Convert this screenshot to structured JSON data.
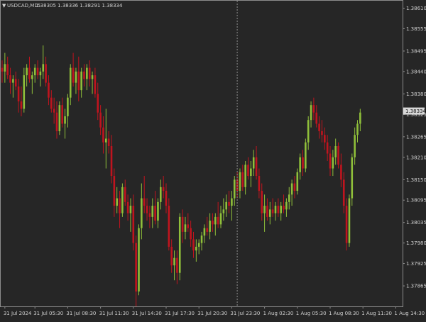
{
  "header": {
    "menu_arrow": "▼",
    "symbol_timeframe": "USDCAD,M15",
    "ohlc": "1.38305 1.38336 1.38291 1.38334"
  },
  "colors": {
    "background": "#262626",
    "border": "#8c8c8c",
    "bull": "#8fbf3a",
    "bear": "#c0141e",
    "text": "#d0d0d0",
    "vline": "#8a8a8a",
    "price_tag_bg": "#d8d8d8",
    "price_tag_text": "#111111"
  },
  "chart_data": {
    "type": "candlestick",
    "symbol": "USDCAD",
    "timeframe": "M15",
    "price_range": [
      1.3781,
      1.3863
    ],
    "y_ticks": [
      "1.38610",
      "1.38555",
      "1.38495",
      "1.38440",
      "1.38380",
      "1.38325",
      "1.38265",
      "1.38210",
      "1.38150",
      "1.38095",
      "1.38035",
      "1.37980",
      "1.37925",
      "1.37865"
    ],
    "x_ticks": [
      {
        "label": "31 Jul 2024",
        "index": 1
      },
      {
        "label": "31 Jul 05:30",
        "index": 12
      },
      {
        "label": "31 Jul 08:30",
        "index": 24
      },
      {
        "label": "31 Jul 11:30",
        "index": 36
      },
      {
        "label": "31 Jul 14:30",
        "index": 48
      },
      {
        "label": "31 Jul 17:30",
        "index": 60
      },
      {
        "label": "31 Jul 20:30",
        "index": 72
      },
      {
        "label": "31 Jul 23:30",
        "index": 84
      },
      {
        "label": "1 Aug 02:30",
        "index": 96
      },
      {
        "label": "1 Aug 05:30",
        "index": 108
      },
      {
        "label": "1 Aug 08:30",
        "index": 120
      },
      {
        "label": "1 Aug 11:30",
        "index": 132
      },
      {
        "label": "1 Aug 14:30",
        "index": 144
      }
    ],
    "current_price": "1.38334",
    "current_price_value": 1.38334,
    "period_separator_index": 86,
    "candles": [
      [
        1.3845,
        1.3847,
        1.3841,
        1.3844
      ],
      [
        1.3844,
        1.3849,
        1.3841,
        1.3846
      ],
      [
        1.3846,
        1.3848,
        1.3842,
        1.3843
      ],
      [
        1.3843,
        1.3845,
        1.3838,
        1.3841
      ],
      [
        1.3841,
        1.3843,
        1.3837,
        1.3842
      ],
      [
        1.3842,
        1.3844,
        1.3839,
        1.384
      ],
      [
        1.384,
        1.3842,
        1.3833,
        1.3836
      ],
      [
        1.3836,
        1.384,
        1.3832,
        1.3834
      ],
      [
        1.3834,
        1.3845,
        1.3833,
        1.3843
      ],
      [
        1.3843,
        1.3846,
        1.384,
        1.3845
      ],
      [
        1.3845,
        1.3848,
        1.3841,
        1.3842
      ],
      [
        1.3842,
        1.3844,
        1.3838,
        1.3843
      ],
      [
        1.3843,
        1.3846,
        1.3841,
        1.3845
      ],
      [
        1.3845,
        1.3847,
        1.3842,
        1.3843
      ],
      [
        1.3843,
        1.3845,
        1.384,
        1.3844
      ],
      [
        1.3844,
        1.3851,
        1.3842,
        1.3846
      ],
      [
        1.3846,
        1.3848,
        1.384,
        1.3841
      ],
      [
        1.3841,
        1.3843,
        1.3835,
        1.3837
      ],
      [
        1.3837,
        1.3839,
        1.3833,
        1.3834
      ],
      [
        1.3834,
        1.3837,
        1.383,
        1.3833
      ],
      [
        1.3833,
        1.3836,
        1.3826,
        1.3828
      ],
      [
        1.3828,
        1.3836,
        1.3827,
        1.3835
      ],
      [
        1.3835,
        1.3837,
        1.3829,
        1.383
      ],
      [
        1.383,
        1.3834,
        1.3826,
        1.3832
      ],
      [
        1.3832,
        1.3838,
        1.3829,
        1.3837
      ],
      [
        1.3837,
        1.3846,
        1.3835,
        1.3845
      ],
      [
        1.3845,
        1.3849,
        1.384,
        1.3841
      ],
      [
        1.3841,
        1.3845,
        1.3838,
        1.3844
      ],
      [
        1.3844,
        1.3848,
        1.3836,
        1.3839
      ],
      [
        1.3839,
        1.3845,
        1.3837,
        1.3844
      ],
      [
        1.3844,
        1.3846,
        1.384,
        1.3842
      ],
      [
        1.3842,
        1.3846,
        1.3839,
        1.3845
      ],
      [
        1.3845,
        1.3847,
        1.384,
        1.3842
      ],
      [
        1.3842,
        1.3844,
        1.3838,
        1.3843
      ],
      [
        1.3843,
        1.3845,
        1.3837,
        1.3838
      ],
      [
        1.3838,
        1.3841,
        1.3831,
        1.3833
      ],
      [
        1.3833,
        1.3835,
        1.3827,
        1.3829
      ],
      [
        1.3829,
        1.3832,
        1.3822,
        1.3825
      ],
      [
        1.3825,
        1.3834,
        1.3818,
        1.3826
      ],
      [
        1.3826,
        1.3828,
        1.3822,
        1.3824
      ],
      [
        1.3824,
        1.3827,
        1.3814,
        1.3816
      ],
      [
        1.3816,
        1.3818,
        1.3805,
        1.3808
      ],
      [
        1.3808,
        1.3813,
        1.3806,
        1.381
      ],
      [
        1.381,
        1.3812,
        1.3802,
        1.3806
      ],
      [
        1.3806,
        1.3814,
        1.3805,
        1.3813
      ],
      [
        1.3813,
        1.3815,
        1.3808,
        1.3809
      ],
      [
        1.3809,
        1.3811,
        1.3804,
        1.3806
      ],
      [
        1.3806,
        1.381,
        1.3801,
        1.3808
      ],
      [
        1.3808,
        1.3811,
        1.3796,
        1.3798
      ],
      [
        1.3798,
        1.38,
        1.3781,
        1.3785
      ],
      [
        1.3785,
        1.3803,
        1.3784,
        1.3802
      ],
      [
        1.3802,
        1.3814,
        1.3799,
        1.381
      ],
      [
        1.381,
        1.3816,
        1.3806,
        1.3808
      ],
      [
        1.3808,
        1.381,
        1.3804,
        1.3806
      ],
      [
        1.3806,
        1.3808,
        1.3802,
        1.3805
      ],
      [
        1.3805,
        1.381,
        1.3802,
        1.3808
      ],
      [
        1.3808,
        1.3812,
        1.3803,
        1.3804
      ],
      [
        1.3804,
        1.381,
        1.3802,
        1.3809
      ],
      [
        1.3809,
        1.3815,
        1.3807,
        1.3813
      ],
      [
        1.3813,
        1.3816,
        1.381,
        1.3812
      ],
      [
        1.3812,
        1.3814,
        1.3806,
        1.3808
      ],
      [
        1.3808,
        1.381,
        1.3796,
        1.3797
      ],
      [
        1.3797,
        1.3799,
        1.379,
        1.3792
      ],
      [
        1.3792,
        1.3796,
        1.3788,
        1.3794
      ],
      [
        1.3794,
        1.3796,
        1.3787,
        1.379
      ],
      [
        1.379,
        1.3806,
        1.3788,
        1.3805
      ],
      [
        1.3805,
        1.3807,
        1.3798,
        1.3801
      ],
      [
        1.3801,
        1.3805,
        1.3799,
        1.3803
      ],
      [
        1.3803,
        1.3806,
        1.3801,
        1.3802
      ],
      [
        1.3802,
        1.3804,
        1.3797,
        1.3799
      ],
      [
        1.3799,
        1.3801,
        1.3794,
        1.3796
      ],
      [
        1.3796,
        1.3799,
        1.3793,
        1.3797
      ],
      [
        1.3797,
        1.3799,
        1.3795,
        1.3798
      ],
      [
        1.3798,
        1.3801,
        1.3796,
        1.38
      ],
      [
        1.38,
        1.3803,
        1.3798,
        1.3802
      ],
      [
        1.3802,
        1.3805,
        1.38,
        1.3801
      ],
      [
        1.3801,
        1.3806,
        1.3799,
        1.3804
      ],
      [
        1.3804,
        1.3806,
        1.3801,
        1.3803
      ],
      [
        1.3803,
        1.3806,
        1.38,
        1.3805
      ],
      [
        1.3805,
        1.3809,
        1.3802,
        1.3803
      ],
      [
        1.3803,
        1.3808,
        1.3802,
        1.3806
      ],
      [
        1.3806,
        1.381,
        1.3804,
        1.3807
      ],
      [
        1.3807,
        1.3811,
        1.3805,
        1.3809
      ],
      [
        1.3809,
        1.3812,
        1.3806,
        1.3808
      ],
      [
        1.3808,
        1.3812,
        1.3804,
        1.381
      ],
      [
        1.381,
        1.3816,
        1.3808,
        1.3815
      ],
      [
        1.3815,
        1.3817,
        1.381,
        1.3812
      ],
      [
        1.3812,
        1.3818,
        1.381,
        1.3817
      ],
      [
        1.3817,
        1.3819,
        1.3812,
        1.3813
      ],
      [
        1.3813,
        1.382,
        1.3811,
        1.3819
      ],
      [
        1.3819,
        1.3821,
        1.3815,
        1.3816
      ],
      [
        1.3816,
        1.382,
        1.3813,
        1.3818
      ],
      [
        1.3818,
        1.3823,
        1.3816,
        1.3821
      ],
      [
        1.3821,
        1.3824,
        1.3815,
        1.3816
      ],
      [
        1.3816,
        1.3818,
        1.381,
        1.3812
      ],
      [
        1.3812,
        1.3814,
        1.3804,
        1.3806
      ],
      [
        1.3806,
        1.3811,
        1.3801,
        1.3808
      ],
      [
        1.3808,
        1.381,
        1.3804,
        1.3805
      ],
      [
        1.3805,
        1.3809,
        1.3803,
        1.3807
      ],
      [
        1.3807,
        1.381,
        1.3805,
        1.3806
      ],
      [
        1.3806,
        1.3809,
        1.3804,
        1.3808
      ],
      [
        1.3808,
        1.381,
        1.3805,
        1.3806
      ],
      [
        1.3806,
        1.3809,
        1.3804,
        1.3808
      ],
      [
        1.3808,
        1.3811,
        1.3806,
        1.3807
      ],
      [
        1.3807,
        1.381,
        1.3805,
        1.3809
      ],
      [
        1.3809,
        1.3813,
        1.3807,
        1.3811
      ],
      [
        1.3811,
        1.3815,
        1.3808,
        1.3814
      ],
      [
        1.3814,
        1.3816,
        1.381,
        1.3812
      ],
      [
        1.3812,
        1.3818,
        1.3811,
        1.3817
      ],
      [
        1.3817,
        1.3822,
        1.3815,
        1.3821
      ],
      [
        1.3821,
        1.3823,
        1.3816,
        1.3818
      ],
      [
        1.3818,
        1.3826,
        1.3817,
        1.3825
      ],
      [
        1.3825,
        1.3832,
        1.3823,
        1.3831
      ],
      [
        1.3831,
        1.3836,
        1.3829,
        1.3835
      ],
      [
        1.3835,
        1.3837,
        1.3831,
        1.3833
      ],
      [
        1.3833,
        1.3835,
        1.3829,
        1.383
      ],
      [
        1.383,
        1.3832,
        1.3826,
        1.3828
      ],
      [
        1.3828,
        1.3831,
        1.3825,
        1.3827
      ],
      [
        1.3827,
        1.3829,
        1.3823,
        1.3825
      ],
      [
        1.3825,
        1.3827,
        1.382,
        1.3822
      ],
      [
        1.3822,
        1.3824,
        1.3816,
        1.3818
      ],
      [
        1.3818,
        1.3823,
        1.3816,
        1.3821
      ],
      [
        1.3821,
        1.3826,
        1.3819,
        1.3824
      ],
      [
        1.3824,
        1.3825,
        1.3818,
        1.3819
      ],
      [
        1.3819,
        1.3822,
        1.3813,
        1.3815
      ],
      [
        1.3815,
        1.3817,
        1.3806,
        1.3808
      ],
      [
        1.3808,
        1.381,
        1.3796,
        1.3798
      ],
      [
        1.3798,
        1.3811,
        1.3797,
        1.381
      ],
      [
        1.381,
        1.3822,
        1.3808,
        1.3821
      ],
      [
        1.3821,
        1.3829,
        1.3819,
        1.3827
      ],
      [
        1.3827,
        1.3831,
        1.3825,
        1.383
      ],
      [
        1.383,
        1.3834,
        1.3828,
        1.3833
      ]
    ]
  }
}
